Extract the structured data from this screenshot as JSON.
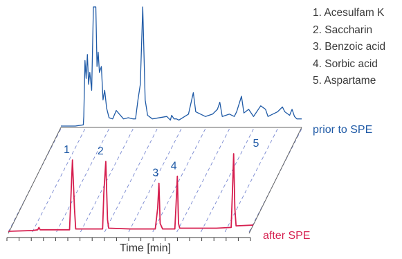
{
  "chart_data": {
    "type": "line",
    "xlabel": "Time [min]",
    "ylabel": "",
    "legend": [
      "1. Acesulfam K",
      "2. Saccharin",
      "3. Benzoic acid",
      "4. Sorbic acid",
      "5. Aspartame"
    ],
    "peaks": [
      {
        "label": "1",
        "x": 0.25,
        "height": 0.92
      },
      {
        "label": "2",
        "x": 0.385,
        "height": 0.9
      },
      {
        "label": "3",
        "x": 0.615,
        "height": 0.62
      },
      {
        "label": "4",
        "x": 0.69,
        "height": 0.71
      },
      {
        "label": "5",
        "x": 1.0,
        "height": 1.0
      }
    ],
    "series": [
      {
        "name": "prior to SPE",
        "color": "#1f5aa6",
        "x": [
          0.0,
          0.06,
          0.093,
          0.095,
          0.1,
          0.105,
          0.11,
          0.115,
          0.12,
          0.128,
          0.135,
          0.14,
          0.145,
          0.15,
          0.155,
          0.16,
          0.168,
          0.175,
          0.182,
          0.19,
          0.2,
          0.215,
          0.23,
          0.26,
          0.28,
          0.3,
          0.31,
          0.32,
          0.33,
          0.34,
          0.35,
          0.36,
          0.38,
          0.44,
          0.455,
          0.46,
          0.47,
          0.48,
          0.49,
          0.53,
          0.55,
          0.56,
          0.6,
          0.63,
          0.65,
          0.66,
          0.67,
          0.7,
          0.72,
          0.73,
          0.75,
          0.76,
          0.78,
          0.8,
          0.81,
          0.83,
          0.85,
          0.86,
          0.88,
          0.9,
          0.92,
          0.93,
          0.95,
          0.96,
          0.97,
          0.98,
          1.0
        ],
        "y": [
          0.0,
          0.0,
          0.01,
          0.08,
          0.55,
          0.4,
          0.6,
          0.35,
          0.45,
          0.3,
          1.0,
          1.0,
          1.0,
          0.5,
          0.62,
          0.45,
          0.5,
          0.22,
          0.3,
          0.15,
          0.07,
          0.06,
          0.13,
          0.06,
          0.07,
          0.06,
          0.06,
          0.22,
          0.35,
          1.0,
          0.22,
          0.09,
          0.06,
          0.08,
          0.05,
          0.09,
          0.06,
          0.06,
          0.05,
          0.1,
          0.28,
          0.12,
          0.08,
          0.1,
          0.14,
          0.2,
          0.08,
          0.1,
          0.08,
          0.12,
          0.25,
          0.11,
          0.14,
          0.08,
          0.11,
          0.17,
          0.14,
          0.08,
          0.1,
          0.12,
          0.16,
          0.12,
          0.09,
          0.14,
          0.08,
          0.06,
          0.06
        ]
      },
      {
        "name": "after SPE",
        "color": "#d61f4f",
        "x": [
          0.0,
          0.1,
          0.12,
          0.125,
          0.13,
          0.25,
          0.255,
          0.262,
          0.27,
          0.275,
          0.3,
          0.385,
          0.39,
          0.398,
          0.405,
          0.41,
          0.5,
          0.6,
          0.61,
          0.615,
          0.62,
          0.63,
          0.68,
          0.685,
          0.69,
          0.695,
          0.7,
          0.75,
          0.85,
          0.91,
          0.915,
          0.92,
          0.925,
          0.93,
          1.0
        ],
        "y": [
          0.0,
          0.01,
          0.02,
          0.05,
          0.02,
          0.02,
          0.4,
          0.92,
          0.3,
          0.03,
          0.03,
          0.03,
          0.5,
          0.9,
          0.15,
          0.04,
          0.03,
          0.03,
          0.3,
          0.62,
          0.1,
          0.03,
          0.03,
          0.35,
          0.71,
          0.1,
          0.04,
          0.04,
          0.04,
          0.05,
          0.5,
          1.0,
          0.3,
          0.07,
          0.08
        ]
      }
    ],
    "trace_labels": {
      "before": "prior to SPE",
      "after": "after SPE"
    },
    "colors": {
      "before": "#1f5aa6",
      "after": "#d61f4f",
      "axis": "#3a3a3a",
      "grid": "#4a5fc1"
    }
  }
}
